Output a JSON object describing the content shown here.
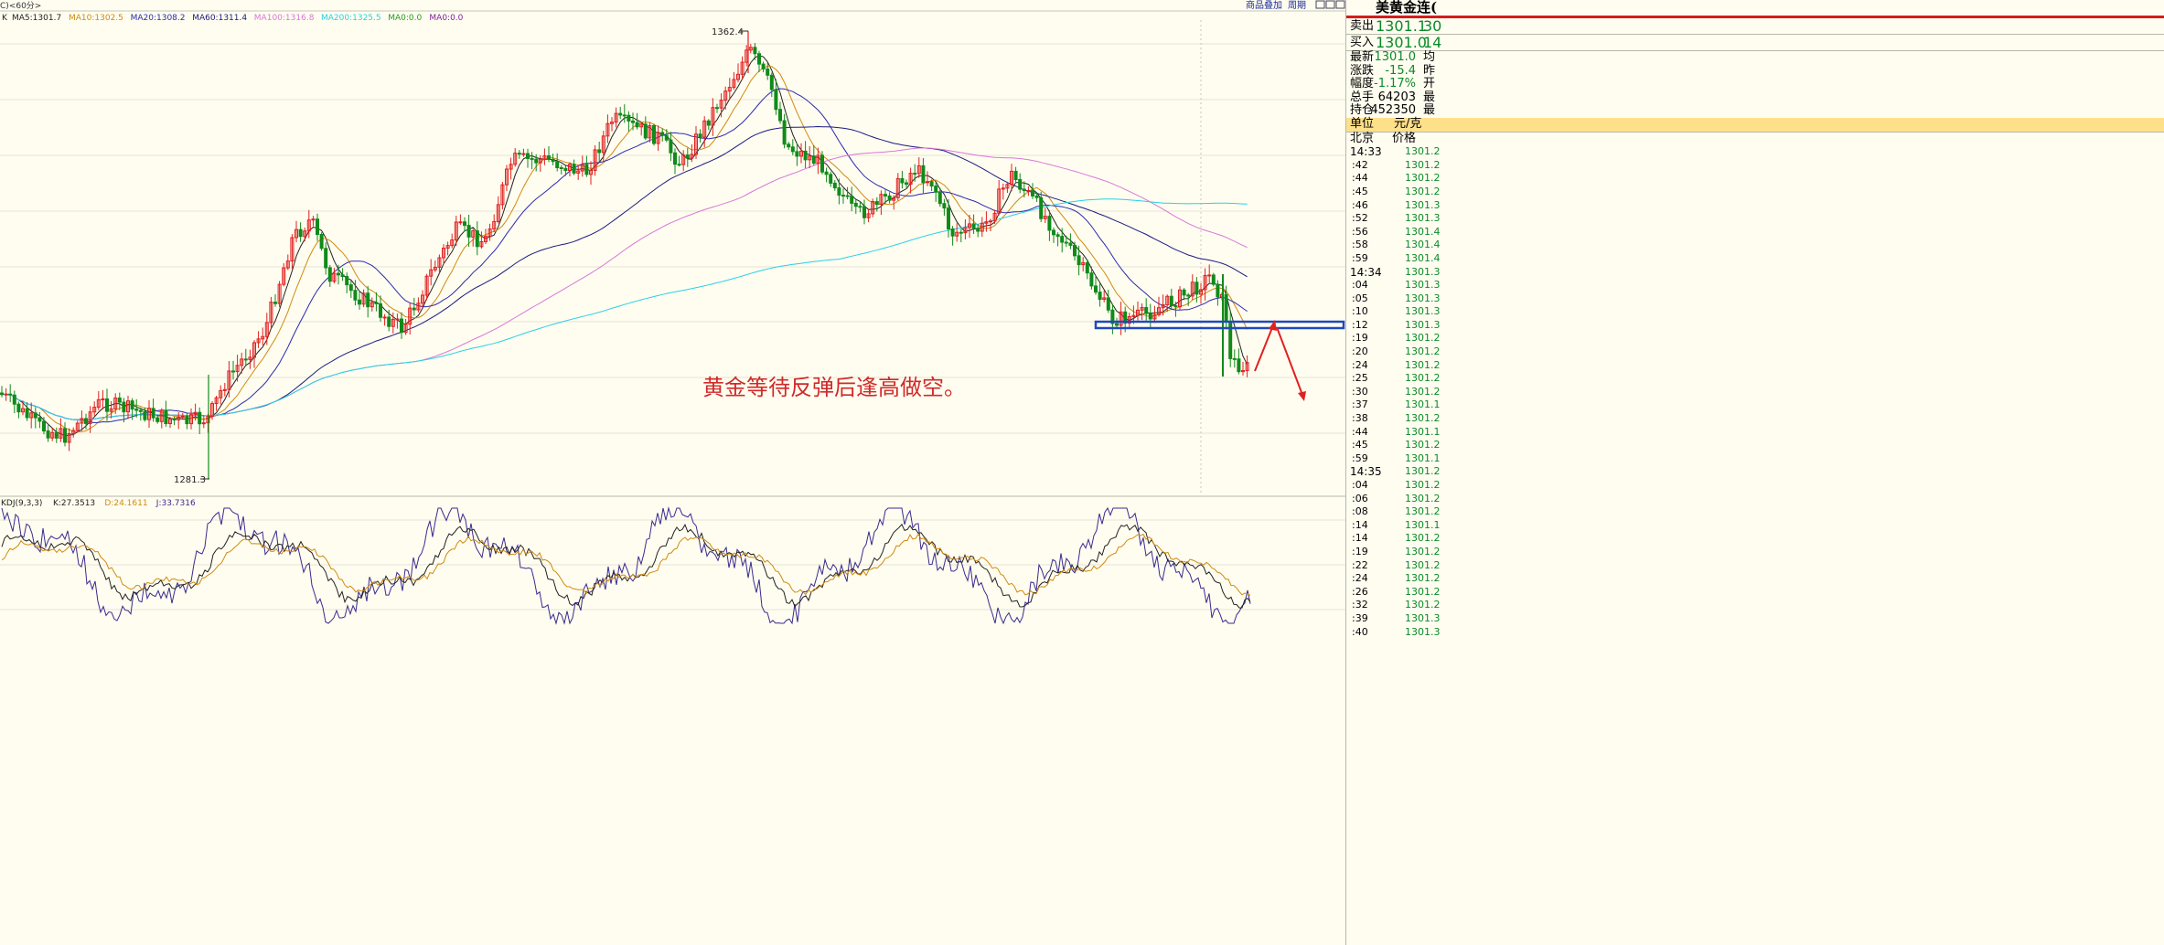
{
  "header": {
    "period_label": "C)<60分>",
    "link_overlay": "商品叠加",
    "link_cycle": "周期"
  },
  "ma_legend": {
    "prefix": "K",
    "items": [
      {
        "text": "MA5:1301.7",
        "color": "#222222"
      },
      {
        "text": "MA10:1302.5",
        "color": "#d08a10"
      },
      {
        "text": "MA20:1308.2",
        "color": "#2a2ab0"
      },
      {
        "text": "MA60:1311.4",
        "color": "#1a1a80"
      },
      {
        "text": "MA100:1316.8",
        "color": "#d878d8"
      },
      {
        "text": "MA200:1325.5",
        "color": "#28d0e8"
      },
      {
        "text": "MA0:0.0",
        "color": "#20a020"
      },
      {
        "text": "MA0:0.0",
        "color": "#8020a0"
      }
    ]
  },
  "kdj_legend": {
    "prefix": "KDJ(9,3,3)",
    "items": [
      {
        "text": "K:27.3513",
        "color": "#222222"
      },
      {
        "text": "D:24.1611",
        "color": "#d08a10"
      },
      {
        "text": "J:33.7316",
        "color": "#3a2a90"
      }
    ]
  },
  "price_chart": {
    "high_label": "1362.4",
    "low_label": "1281.3",
    "annotation": "黄金等待反弹后逢高做空。"
  },
  "colors": {
    "up": "#e02020",
    "down": "#118a1a",
    "annotation": "#d02a2a",
    "box": "#2048c0",
    "arrow": "#e02020"
  },
  "quote_panel": {
    "title": "美黄金连(",
    "sell": {
      "label": "卖出",
      "price": "1301.1",
      "qty": "30"
    },
    "buy": {
      "label": "买入",
      "price": "1301.0",
      "qty": "14"
    },
    "stats": [
      {
        "label": "最新",
        "value": "1301.0",
        "extra": "均"
      },
      {
        "label": "涨跌",
        "value": "-15.4",
        "extra": "昨"
      },
      {
        "label": "幅度",
        "value": "-1.17%",
        "extra": "开"
      },
      {
        "label": "总手",
        "value": "64203",
        "extra": "最"
      },
      {
        "label": "持仓",
        "value": "452350",
        "extra": "最"
      }
    ],
    "unit_label": "单位",
    "unit_value": "元/克",
    "time_header": "北京",
    "price_header": "价格",
    "ticks": [
      {
        "t": "14:33",
        "p": "1301.2"
      },
      {
        "t": ":42",
        "p": "1301.2"
      },
      {
        "t": ":44",
        "p": "1301.2"
      },
      {
        "t": ":45",
        "p": "1301.2"
      },
      {
        "t": ":46",
        "p": "1301.3"
      },
      {
        "t": ":52",
        "p": "1301.3"
      },
      {
        "t": ":56",
        "p": "1301.4"
      },
      {
        "t": ":58",
        "p": "1301.4"
      },
      {
        "t": ":59",
        "p": "1301.4"
      },
      {
        "t": "14:34",
        "p": "1301.3"
      },
      {
        "t": ":04",
        "p": "1301.3"
      },
      {
        "t": ":05",
        "p": "1301.3"
      },
      {
        "t": ":10",
        "p": "1301.3"
      },
      {
        "t": ":12",
        "p": "1301.3"
      },
      {
        "t": ":19",
        "p": "1301.2"
      },
      {
        "t": ":20",
        "p": "1301.2"
      },
      {
        "t": ":24",
        "p": "1301.2"
      },
      {
        "t": ":25",
        "p": "1301.2"
      },
      {
        "t": ":30",
        "p": "1301.2"
      },
      {
        "t": ":37",
        "p": "1301.1"
      },
      {
        "t": ":38",
        "p": "1301.2"
      },
      {
        "t": ":44",
        "p": "1301.1"
      },
      {
        "t": ":45",
        "p": "1301.2"
      },
      {
        "t": ":59",
        "p": "1301.1"
      },
      {
        "t": "14:35",
        "p": "1301.2"
      },
      {
        "t": ":04",
        "p": "1301.2"
      },
      {
        "t": ":06",
        "p": "1301.2"
      },
      {
        "t": ":08",
        "p": "1301.2"
      },
      {
        "t": ":14",
        "p": "1301.1"
      },
      {
        "t": ":14",
        "p": "1301.2"
      },
      {
        "t": ":19",
        "p": "1301.2"
      },
      {
        "t": ":22",
        "p": "1301.2"
      },
      {
        "t": ":24",
        "p": "1301.2"
      },
      {
        "t": ":26",
        "p": "1301.2"
      },
      {
        "t": ":32",
        "p": "1301.2"
      },
      {
        "t": ":39",
        "p": "1301.3"
      },
      {
        "t": ":40",
        "p": "1301.3"
      }
    ]
  }
}
